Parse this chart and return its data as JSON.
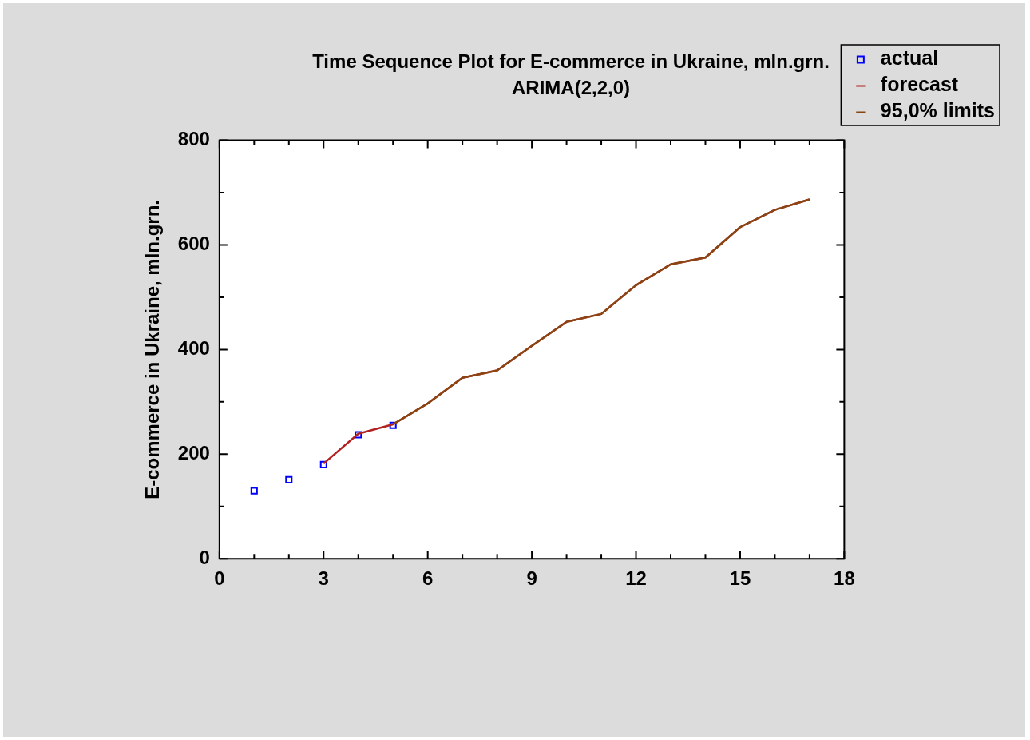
{
  "chart_data": {
    "type": "line",
    "title": "Time Sequence Plot for E-commerce in Ukraine, mln.grn.",
    "subtitle": "ARIMA(2,2,0)",
    "ylabel": "E-commerce in Ukraine, mln.grn.",
    "xlim": [
      0,
      18
    ],
    "xticks": [
      0,
      3,
      6,
      9,
      12,
      15,
      18
    ],
    "ylim": [
      0,
      800
    ],
    "yticks": [
      0,
      200,
      400,
      600,
      800
    ],
    "grid": false,
    "legend": "right",
    "line_style": "solid",
    "series": [
      {
        "name": "actual",
        "type": "scatter",
        "marker": "square",
        "color": "#0000ff",
        "x": [
          1,
          2,
          3,
          4,
          5
        ],
        "values": [
          130,
          151,
          180,
          237,
          255
        ]
      },
      {
        "name": "forecast",
        "type": "line",
        "marker": "none",
        "color": "#b22222",
        "x": [
          3,
          4,
          5,
          6,
          7,
          8,
          9,
          10,
          11,
          12,
          13,
          14,
          15,
          16,
          17
        ],
        "values": [
          182,
          239,
          257,
          297,
          346,
          360,
          407,
          453,
          468,
          523,
          563,
          576,
          634,
          667,
          687
        ]
      },
      {
        "name": "95,0% limits",
        "type": "line",
        "marker": "none",
        "color": "#8b4513",
        "x": [
          5,
          6,
          7,
          8,
          9,
          10,
          11,
          12,
          13,
          14,
          15,
          16,
          17
        ],
        "values": [
          257,
          297,
          346,
          360,
          407,
          453,
          468,
          523,
          563,
          576,
          634,
          667,
          687
        ]
      }
    ]
  }
}
